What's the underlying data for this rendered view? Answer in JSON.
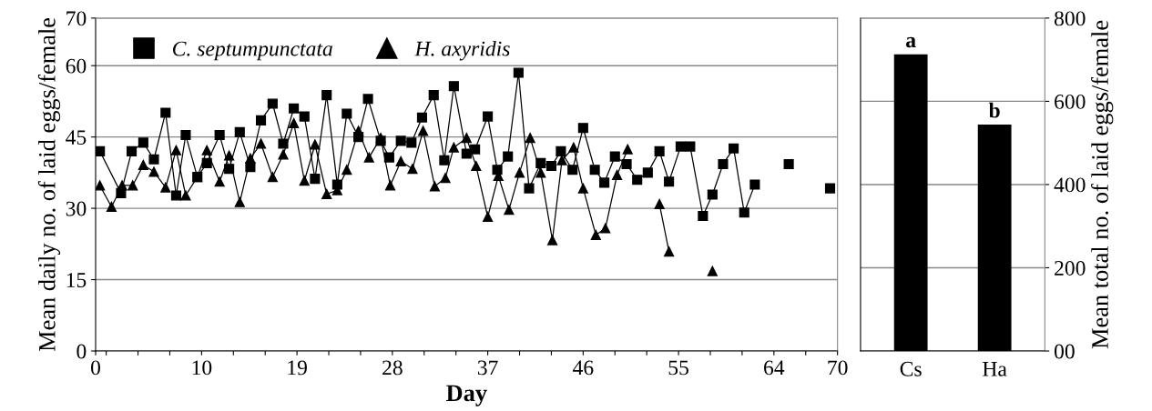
{
  "chart_data": [
    {
      "type": "line",
      "xlabel": "Day",
      "ylabel": "Mean daily no. of laid eggs/female",
      "xlim": [
        0,
        70
      ],
      "ylim": [
        0,
        70
      ],
      "xticks": [
        0,
        {
          "value": 1,
          "label": null
        },
        {
          "value": 4,
          "label": null
        },
        {
          "value": 7,
          "label": null
        },
        10,
        {
          "value": 13,
          "label": null
        },
        {
          "value": 16,
          "label": null
        },
        19,
        {
          "value": 22,
          "label": null
        },
        {
          "value": 25,
          "label": null
        },
        28,
        {
          "value": 31,
          "label": null
        },
        {
          "value": 34,
          "label": null
        },
        37,
        {
          "value": 40,
          "label": null
        },
        {
          "value": 43,
          "label": null
        },
        46,
        {
          "value": 49,
          "label": null
        },
        {
          "value": 52,
          "label": null
        },
        55,
        {
          "value": 58,
          "label": null
        },
        {
          "value": 61,
          "label": null
        },
        64,
        {
          "value": 67,
          "label": null
        },
        70
      ],
      "yticks": [
        0,
        15,
        30,
        45,
        60,
        70
      ],
      "grid": "y",
      "legend": "top left",
      "series": [
        {
          "name": "C. septumpunctata",
          "color": "#000000",
          "marker": "square",
          "x": [
            0.4,
            2.4,
            3.4,
            4.5,
            5.5,
            6.6,
            7.6,
            8.5,
            9.6,
            10.5,
            11.7,
            12.6,
            13.6,
            14.6,
            15.6,
            16.7,
            17.7,
            18.7,
            19.7,
            20.7,
            21.8,
            22.8,
            23.7,
            24.8,
            25.7,
            26.9,
            27.7,
            28.8,
            29.8,
            30.8,
            31.9,
            32.9,
            33.8,
            35.0,
            35.8,
            37.0,
            37.9,
            38.9,
            39.9,
            40.9,
            42.0,
            43.0,
            43.9,
            45.0,
            46.0,
            47.1,
            48.0,
            49.0,
            50.1,
            51.1,
            52.1,
            53.2,
            54.1,
            55.2,
            56.1,
            57.3,
            58.2,
            59.2,
            60.2,
            61.2,
            62.2,
            null,
            65.4,
            null,
            69.3
          ],
          "values": [
            42.0,
            33.2,
            42.0,
            43.8,
            40.3,
            50.1,
            32.7,
            45.4,
            36.6,
            39.5,
            45.4,
            38.3,
            46.0,
            38.7,
            48.5,
            52.0,
            43.6,
            51.0,
            49.3,
            36.2,
            53.8,
            35.0,
            49.9,
            45.0,
            53.0,
            44.2,
            40.7,
            44.2,
            43.8,
            49.1,
            53.8,
            40.1,
            55.7,
            41.5,
            42.4,
            49.3,
            38.1,
            40.9,
            58.5,
            34.2,
            39.5,
            38.9,
            42.0,
            38.1,
            46.9,
            38.1,
            35.4,
            40.9,
            39.3,
            36.0,
            37.5,
            42.0,
            35.6,
            43.0,
            43.0,
            28.4,
            32.9,
            39.3,
            42.6,
            29.1,
            35.0,
            null,
            39.3,
            null,
            34.2
          ]
        },
        {
          "name": "H. axyridis",
          "color": "#000000",
          "marker": "triangle",
          "x": [
            0.4,
            1.5,
            2.5,
            3.5,
            4.5,
            5.5,
            6.6,
            7.6,
            8.5,
            9.6,
            10.5,
            11.7,
            12.6,
            13.6,
            14.6,
            15.6,
            16.7,
            17.7,
            18.7,
            19.7,
            20.7,
            21.8,
            22.8,
            23.7,
            24.8,
            25.8,
            26.9,
            27.8,
            28.8,
            29.9,
            30.9,
            32.0,
            33.0,
            33.8,
            35.0,
            35.9,
            37.0,
            38.0,
            39.0,
            40.0,
            41.0,
            42.0,
            43.1,
            44.0,
            45.1,
            46.0,
            47.2,
            48.1,
            49.2,
            50.2,
            null,
            53.2,
            54.1,
            null,
            58.2
          ],
          "values": [
            34.8,
            30.3,
            34.8,
            34.8,
            39.1,
            37.7,
            34.4,
            42.2,
            32.7,
            36.6,
            42.2,
            35.6,
            41.1,
            31.3,
            40.5,
            43.6,
            36.6,
            41.3,
            47.9,
            35.8,
            43.4,
            33.0,
            33.8,
            38.1,
            46.3,
            40.7,
            44.8,
            34.8,
            39.9,
            38.3,
            46.3,
            34.6,
            36.4,
            42.8,
            44.8,
            38.9,
            28.2,
            36.8,
            29.7,
            37.5,
            44.8,
            37.5,
            23.3,
            40.1,
            42.8,
            34.2,
            24.4,
            25.8,
            37.0,
            42.4,
            null,
            30.9,
            20.9,
            null,
            16.8
          ]
        }
      ]
    },
    {
      "type": "bar",
      "ylabel": "Mean total no. of laid eggs/female",
      "categories": [
        "Cs",
        "Ha"
      ],
      "values": [
        713,
        544
      ],
      "color": "#000000",
      "ylim": [
        0,
        800
      ],
      "yticks": [
        {
          "value": 0,
          "label": "00"
        },
        200,
        400,
        600,
        800
      ],
      "grid": "y",
      "annotations": [
        {
          "text": "a",
          "x": "Cs",
          "y": 713
        },
        {
          "text": "b",
          "x": "Ha",
          "y": 544
        }
      ]
    }
  ]
}
